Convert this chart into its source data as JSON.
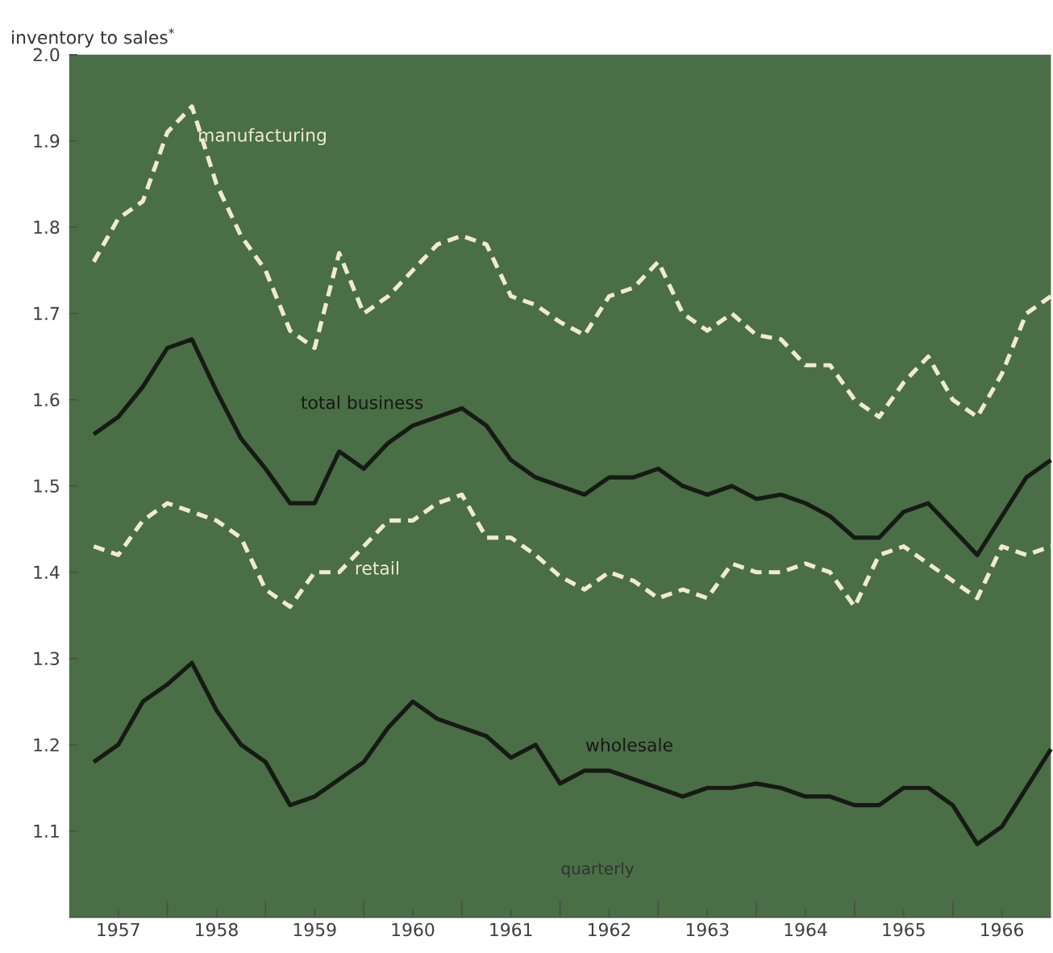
{
  "chart_data": {
    "type": "line",
    "ylabel": "inventory to sales$^{*}$",
    "annotations": [
      "quarterly"
    ],
    "x": [
      1957.25,
      1957.5,
      1957.75,
      1958,
      1958.25,
      1958.5,
      1958.75,
      1959,
      1959.25,
      1959.5,
      1959.75,
      1960,
      1960.25,
      1960.5,
      1960.75,
      1961,
      1961.25,
      1961.5,
      1961.75,
      1962,
      1962.25,
      1962.5,
      1962.75,
      1963,
      1963.25,
      1963.5,
      1963.75,
      1964,
      1964.25,
      1964.5,
      1964.75,
      1965,
      1965.25,
      1965.5,
      1965.75,
      1966,
      1966.25,
      1966.5,
      1966.75,
      1967
    ],
    "series": [
      {
        "name": "manufacturing",
        "color": "#f0ead2",
        "line_style": "dashed",
        "values": [
          1.76,
          1.81,
          1.83,
          1.91,
          1.94,
          1.85,
          1.79,
          1.75,
          1.68,
          1.66,
          1.77,
          1.7,
          1.72,
          1.75,
          1.78,
          1.79,
          1.78,
          1.72,
          1.71,
          1.69,
          1.675,
          1.72,
          1.73,
          1.76,
          1.7,
          1.68,
          1.7,
          1.675,
          1.67,
          1.64,
          1.64,
          1.6,
          1.58,
          1.62,
          1.65,
          1.6,
          1.58,
          1.63,
          1.7,
          1.72
        ]
      },
      {
        "name": "total business",
        "color": "#161a14",
        "line_style": "solid",
        "values": [
          1.56,
          1.58,
          1.615,
          1.66,
          1.67,
          1.61,
          1.555,
          1.52,
          1.48,
          1.48,
          1.54,
          1.52,
          1.55,
          1.57,
          1.58,
          1.59,
          1.57,
          1.53,
          1.51,
          1.5,
          1.49,
          1.51,
          1.51,
          1.52,
          1.5,
          1.49,
          1.5,
          1.485,
          1.49,
          1.48,
          1.465,
          1.44,
          1.44,
          1.47,
          1.48,
          1.45,
          1.42,
          1.465,
          1.51,
          1.53
        ]
      },
      {
        "name": "retail",
        "color": "#f0ead2",
        "line_style": "dashed",
        "values": [
          1.43,
          1.42,
          1.46,
          1.48,
          1.47,
          1.46,
          1.44,
          1.38,
          1.36,
          1.4,
          1.4,
          1.43,
          1.46,
          1.46,
          1.48,
          1.49,
          1.44,
          1.44,
          1.42,
          1.395,
          1.38,
          1.4,
          1.39,
          1.37,
          1.38,
          1.37,
          1.41,
          1.4,
          1.4,
          1.41,
          1.4,
          1.36,
          1.42,
          1.43,
          1.41,
          1.39,
          1.37,
          1.43,
          1.42,
          1.43
        ]
      },
      {
        "name": "wholesale",
        "color": "#161a14",
        "line_style": "solid",
        "values": [
          1.18,
          1.2,
          1.25,
          1.27,
          1.295,
          1.24,
          1.2,
          1.18,
          1.13,
          1.14,
          1.16,
          1.18,
          1.22,
          1.25,
          1.23,
          1.22,
          1.21,
          1.185,
          1.2,
          1.155,
          1.17,
          1.17,
          1.16,
          1.15,
          1.14,
          1.15,
          1.15,
          1.155,
          1.15,
          1.14,
          1.14,
          1.13,
          1.13,
          1.15,
          1.15,
          1.13,
          1.085,
          1.105,
          1.15,
          1.195
        ]
      }
    ],
    "xlim": [
      1957,
      1967
    ],
    "ylim": [
      1.0,
      2.0
    ],
    "xticks": [
      {
        "value": 1957.5,
        "label": "1957"
      },
      {
        "value": 1958.5,
        "label": "1958"
      },
      {
        "value": 1959.5,
        "label": "1959"
      },
      {
        "value": 1960.5,
        "label": "1960"
      },
      {
        "value": 1961.5,
        "label": "1961"
      },
      {
        "value": 1962.5,
        "label": "1962"
      },
      {
        "value": 1963.5,
        "label": "1963"
      },
      {
        "value": 1964.5,
        "label": "1964"
      },
      {
        "value": 1965.5,
        "label": "1965"
      },
      {
        "value": 1966.5,
        "label": "1966"
      },
      {
        "value": 1958,
        "label": null
      },
      {
        "value": 1959,
        "label": null
      },
      {
        "value": 1960,
        "label": null
      },
      {
        "value": 1961,
        "label": null
      },
      {
        "value": 1962,
        "label": null
      },
      {
        "value": 1963,
        "label": null
      },
      {
        "value": 1964,
        "label": null
      },
      {
        "value": 1965,
        "label": null
      },
      {
        "value": 1966,
        "label": null
      }
    ],
    "yticks": [
      1.1,
      1.2,
      1.3,
      1.4,
      1.5,
      1.6,
      1.7,
      1.8,
      1.9,
      {
        "value": 2.0,
        "label": "2.0"
      }
    ],
    "grid": false,
    "legend": false,
    "marker": "none"
  }
}
